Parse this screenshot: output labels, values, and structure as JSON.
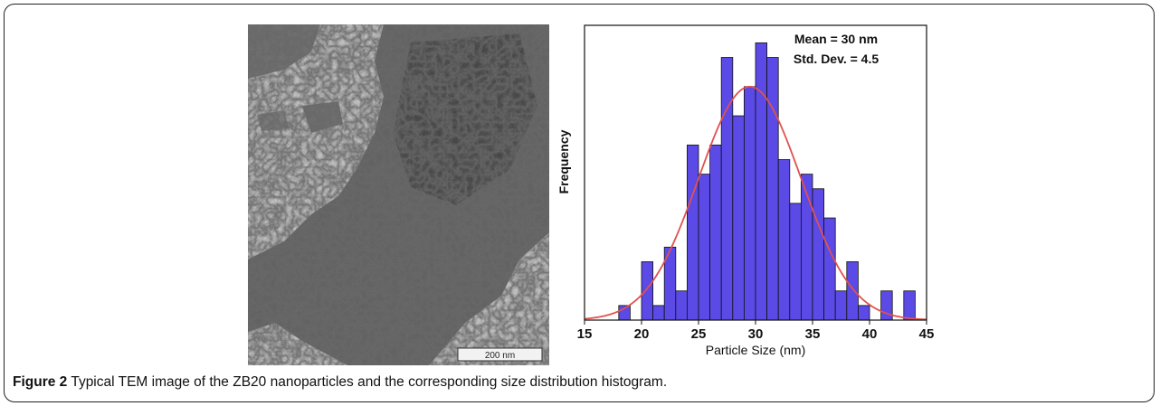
{
  "caption": {
    "label": "Figure 2",
    "text": "Typical TEM image of the ZB20 nanoparticles and the corresponding size distribution histogram."
  },
  "tem_image": {
    "scale_bar_label": "200 nm"
  },
  "chart_data": {
    "type": "bar",
    "xlabel": "Particle Size (nm)",
    "ylabel": "Frequency",
    "xlim": [
      15,
      45
    ],
    "xticks": [
      15,
      20,
      25,
      30,
      35,
      40,
      45
    ],
    "bin_width": 1,
    "bins_start": [
      18,
      19,
      20,
      21,
      22,
      23,
      24,
      25,
      26,
      27,
      28,
      29,
      30,
      31,
      32,
      33,
      34,
      35,
      36,
      37,
      38,
      39,
      40,
      41,
      42,
      43
    ],
    "values": [
      1,
      0,
      4,
      1,
      5,
      2,
      12,
      10,
      12,
      18,
      14,
      16,
      19,
      18,
      11,
      8,
      10,
      9,
      7,
      2,
      4,
      1,
      0,
      2,
      0,
      2
    ],
    "fit": {
      "type": "normal",
      "mean": 29.5,
      "sd": 4.5,
      "peak": 16
    },
    "annotations": [
      "Mean = 30 nm",
      "Std. Dev. = 4.5"
    ],
    "colors": {
      "bar": "#5b4ae6",
      "bar_edge": "#111111",
      "fit": "#e0514f"
    }
  }
}
